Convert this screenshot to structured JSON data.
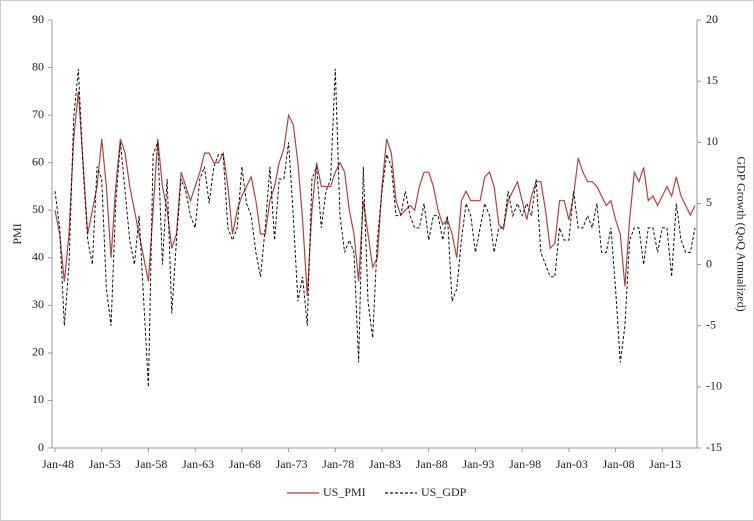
{
  "chart_data": {
    "type": "line",
    "ylabel": "PMI",
    "y2label": "GDP Growth (QoQ Annualized)",
    "categories": [
      "Jan-48",
      null,
      null,
      null,
      null,
      null,
      null,
      null,
      null,
      null,
      "Jan-53",
      null,
      null,
      null,
      null,
      null,
      null,
      null,
      null,
      null,
      "Jan-58",
      null,
      null,
      null,
      null,
      null,
      null,
      null,
      null,
      null,
      "Jan-63",
      null,
      null,
      null,
      null,
      null,
      null,
      null,
      null,
      null,
      "Jan-68",
      null,
      null,
      null,
      null,
      null,
      null,
      null,
      null,
      null,
      "Jan-73",
      null,
      null,
      null,
      null,
      null,
      null,
      null,
      null,
      null,
      "Jan-78",
      null,
      null,
      null,
      null,
      null,
      null,
      null,
      null,
      null,
      "Jan-83",
      null,
      null,
      null,
      null,
      null,
      null,
      null,
      null,
      null,
      "Jan-88",
      null,
      null,
      null,
      null,
      null,
      null,
      null,
      null,
      null,
      "Jan-93",
      null,
      null,
      null,
      null,
      null,
      null,
      null,
      null,
      null,
      "Jan-98",
      null,
      null,
      null,
      null,
      null,
      null,
      null,
      null,
      null,
      "Jan-03",
      null,
      null,
      null,
      null,
      null,
      null,
      null,
      null,
      null,
      "Jan-08",
      null,
      null,
      null,
      null,
      null,
      null,
      null,
      null,
      null,
      "Jan-13",
      null,
      null,
      null,
      null,
      null,
      null,
      null
    ],
    "series": [
      {
        "name": "US_PMI",
        "color": "#b5423f",
        "dash": "solid",
        "values": [
          50,
          45,
          35,
          45,
          65,
          75,
          60,
          45,
          50,
          55,
          65,
          55,
          40,
          55,
          65,
          62,
          55,
          50,
          45,
          40,
          35,
          50,
          65,
          55,
          50,
          42,
          45,
          58,
          55,
          52,
          55,
          58,
          62,
          62,
          60,
          60,
          62,
          55,
          45,
          50,
          53,
          55,
          57,
          52,
          45,
          45,
          52,
          55,
          60,
          63,
          70,
          68,
          60,
          48,
          32,
          50,
          60,
          55,
          55,
          55,
          58,
          60,
          58,
          50,
          45,
          35,
          52,
          45,
          38,
          40,
          55,
          65,
          62,
          52,
          49,
          50,
          51,
          50,
          55,
          58,
          58,
          55,
          50,
          47,
          48,
          45,
          40,
          52,
          54,
          52,
          52,
          52,
          57,
          58,
          55,
          47,
          46,
          52,
          54,
          56,
          52,
          48,
          53,
          56,
          56,
          50,
          42,
          43,
          52,
          52,
          48,
          53,
          61,
          58,
          56,
          56,
          55,
          53,
          51,
          52,
          48,
          45,
          34,
          48,
          58,
          56,
          59,
          52,
          53,
          51,
          53,
          55,
          53,
          57,
          53,
          51,
          49,
          51
        ]
      },
      {
        "name": "US_GDP",
        "color": "#111111",
        "dash": "dashed",
        "axis": "y2",
        "values": [
          6,
          3,
          -5,
          0,
          12,
          16,
          8,
          2,
          0,
          8,
          7,
          -2,
          -5,
          5,
          10,
          6,
          2,
          0,
          4,
          -3,
          -10,
          9,
          10,
          0,
          7,
          -4,
          2,
          7,
          6,
          4,
          3,
          7,
          8,
          5,
          8,
          9,
          9,
          3,
          2,
          3,
          8,
          5,
          4,
          1,
          -1,
          3,
          8,
          2,
          7,
          7,
          10,
          4,
          -3,
          -1,
          -5,
          7,
          8,
          3,
          6,
          7,
          16,
          4,
          1,
          2,
          1,
          -8,
          8,
          -3,
          -6,
          2,
          6,
          9,
          8,
          4,
          4,
          6,
          4,
          3,
          3,
          5,
          2,
          4,
          4,
          2,
          4,
          -3,
          -2,
          2,
          5,
          4,
          1,
          3,
          5,
          4,
          1,
          3,
          3,
          6,
          4,
          5,
          4,
          5,
          4,
          7,
          1,
          0,
          -1,
          -1,
          3,
          2,
          2,
          6,
          3,
          3,
          4,
          3,
          5,
          1,
          1,
          3,
          -2,
          -8,
          -5,
          2,
          3,
          3,
          0,
          3,
          3,
          1,
          3,
          3,
          -1,
          5,
          2,
          1,
          1,
          3
        ]
      }
    ],
    "ylim": [
      0,
      90
    ],
    "yticks": [
      0,
      10,
      20,
      30,
      40,
      50,
      60,
      70,
      80,
      90
    ],
    "y2lim": [
      -15,
      20
    ],
    "y2ticks": [
      -15,
      -10,
      -5,
      0,
      5,
      10,
      15,
      20
    ],
    "grid": false,
    "legend": "bottom"
  }
}
